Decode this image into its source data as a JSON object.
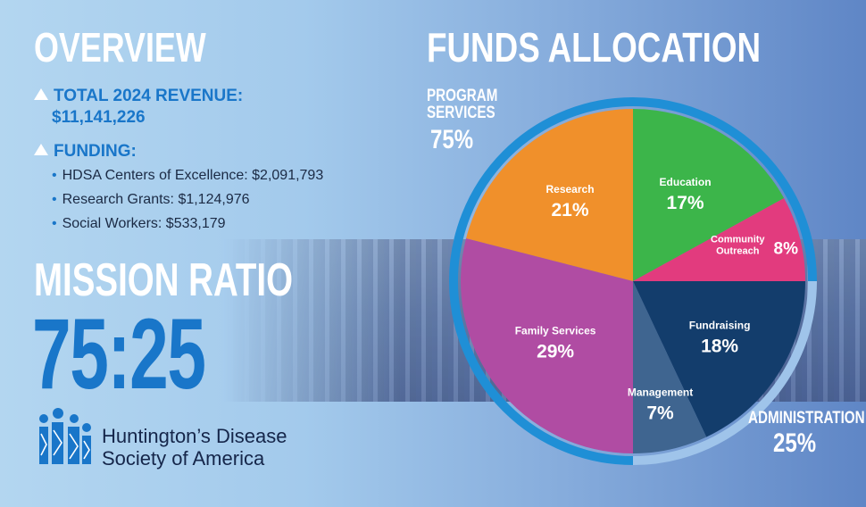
{
  "overview": {
    "title": "OVERVIEW",
    "revenue_label": "TOTAL 2024 REVENUE:",
    "revenue_value": "$11,141,226",
    "funding_label": "FUNDING:",
    "funding_items": [
      "HDSA Centers of Excellence: $2,091,793",
      "Research Grants: $1,124,976",
      "Social Workers: $533,179"
    ]
  },
  "mission": {
    "title": "MISSION RATIO",
    "value": "75:25"
  },
  "logo": {
    "line1": "Huntington’s Disease",
    "line2": "Society of America"
  },
  "colors": {
    "accent_blue": "#1976c9",
    "ring_blue": "#1f8fd6",
    "research": "#f0902b",
    "education": "#3cb54a",
    "community_outreach": "#e23b7e",
    "fundraising": "#133d6c",
    "management": "#3f6590",
    "family_services": "#b04ca3"
  },
  "chart_data": {
    "type": "pie",
    "title": "FUNDS ALLOCATION",
    "slices": [
      {
        "label": "Education",
        "value": 17,
        "pct_text": "17%"
      },
      {
        "label": "Community Outreach",
        "value": 8,
        "pct_text": "8%"
      },
      {
        "label": "Fundraising",
        "value": 18,
        "pct_text": "18%"
      },
      {
        "label": "Management",
        "value": 7,
        "pct_text": "7%"
      },
      {
        "label": "Family Services",
        "value": 29,
        "pct_text": "29%"
      },
      {
        "label": "Research",
        "value": 21,
        "pct_text": "21%"
      }
    ],
    "groups": [
      {
        "label": "PROGRAM SERVICES",
        "value": 75,
        "pct_text": "75%",
        "members": [
          "Education",
          "Community Outreach",
          "Family Services",
          "Research"
        ]
      },
      {
        "label": "ADMINISTRATION",
        "value": 25,
        "pct_text": "25%",
        "members": [
          "Fundraising",
          "Management"
        ]
      }
    ]
  }
}
